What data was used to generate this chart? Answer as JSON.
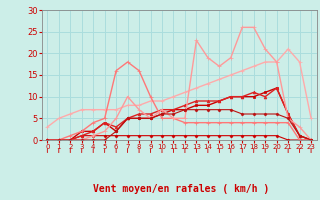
{
  "xlabel": "Vent moyen/en rafales ( km/h )",
  "bg_color": "#cceee8",
  "grid_color": "#aadddd",
  "xlim": [
    -0.5,
    23.5
  ],
  "ylim": [
    0,
    30
  ],
  "yticks": [
    0,
    5,
    10,
    15,
    20,
    25,
    30
  ],
  "xticks": [
    0,
    1,
    2,
    3,
    4,
    5,
    6,
    7,
    8,
    9,
    10,
    11,
    12,
    13,
    14,
    15,
    16,
    17,
    18,
    19,
    20,
    21,
    22,
    23
  ],
  "series": [
    {
      "x": [
        0,
        1,
        2,
        3,
        4,
        5,
        6,
        7,
        8,
        9,
        10,
        11,
        12,
        13,
        14,
        15,
        16,
        17,
        18,
        19,
        20,
        21,
        22,
        23
      ],
      "y": [
        0,
        0,
        0,
        1,
        1,
        1,
        1,
        1,
        1,
        1,
        1,
        1,
        1,
        1,
        1,
        1,
        1,
        1,
        1,
        1,
        1,
        0,
        0,
        0
      ],
      "color": "#cc0000",
      "lw": 0.8,
      "marker": "D",
      "ms": 1.5
    },
    {
      "x": [
        0,
        1,
        2,
        3,
        4,
        5,
        6,
        7,
        8,
        9,
        10,
        11,
        12,
        13,
        14,
        15,
        16,
        17,
        18,
        19,
        20,
        21,
        22,
        23
      ],
      "y": [
        0,
        0,
        0,
        2,
        2,
        4,
        2,
        5,
        5,
        5,
        6,
        7,
        7,
        8,
        8,
        9,
        10,
        10,
        10,
        11,
        12,
        6,
        1,
        0
      ],
      "color": "#cc0000",
      "lw": 1.0,
      "marker": "s",
      "ms": 2.0
    },
    {
      "x": [
        0,
        1,
        2,
        3,
        4,
        5,
        6,
        7,
        8,
        9,
        10,
        11,
        12,
        13,
        14,
        15,
        16,
        17,
        18,
        19,
        20,
        21,
        22,
        23
      ],
      "y": [
        0,
        0,
        0,
        1,
        2,
        4,
        3,
        5,
        6,
        6,
        7,
        7,
        8,
        9,
        9,
        9,
        10,
        10,
        11,
        10,
        12,
        6,
        1,
        0
      ],
      "color": "#dd2222",
      "lw": 1.0,
      "marker": "^",
      "ms": 2.0
    },
    {
      "x": [
        0,
        1,
        2,
        3,
        4,
        5,
        6,
        7,
        8,
        9,
        10,
        11,
        12,
        13,
        14,
        15,
        16,
        17,
        18,
        19,
        20,
        21,
        22,
        23
      ],
      "y": [
        3,
        5,
        6,
        7,
        7,
        7,
        7,
        8,
        8,
        9,
        9,
        10,
        11,
        12,
        13,
        14,
        15,
        16,
        17,
        18,
        18,
        21,
        18,
        5
      ],
      "color": "#ffaaaa",
      "lw": 1.0,
      "marker": "+",
      "ms": 3.5
    },
    {
      "x": [
        0,
        1,
        2,
        3,
        4,
        5,
        6,
        7,
        8,
        9,
        10,
        11,
        12,
        13,
        14,
        15,
        16,
        17,
        18,
        19,
        20,
        21,
        22,
        23
      ],
      "y": [
        0,
        0,
        1,
        2,
        4,
        5,
        16,
        18,
        16,
        10,
        5,
        5,
        4,
        4,
        4,
        4,
        4,
        4,
        4,
        4,
        4,
        4,
        0,
        0
      ],
      "color": "#ff7777",
      "lw": 1.0,
      "marker": "+",
      "ms": 3.0
    },
    {
      "x": [
        0,
        1,
        2,
        3,
        4,
        5,
        6,
        7,
        8,
        9,
        10,
        11,
        12,
        13,
        14,
        15,
        16,
        17,
        18,
        19,
        20,
        21,
        22,
        23
      ],
      "y": [
        0,
        0,
        0,
        0,
        1,
        2,
        5,
        10,
        7,
        5,
        7,
        5,
        5,
        23,
        19,
        17,
        19,
        26,
        26,
        21,
        18,
        5,
        3,
        0
      ],
      "color": "#ff9999",
      "lw": 1.0,
      "marker": "+",
      "ms": 3.0
    },
    {
      "x": [
        0,
        1,
        2,
        3,
        4,
        5,
        6,
        7,
        8,
        9,
        10,
        11,
        12,
        13,
        14,
        15,
        16,
        17,
        18,
        19,
        20,
        21,
        22,
        23
      ],
      "y": [
        0,
        0,
        0,
        0,
        0,
        0,
        2,
        5,
        5,
        5,
        6,
        6,
        7,
        7,
        7,
        7,
        7,
        6,
        6,
        6,
        6,
        5,
        1,
        0
      ],
      "color": "#bb1111",
      "lw": 0.8,
      "marker": "D",
      "ms": 1.5
    }
  ],
  "arrow_color": "#cc0000",
  "xlabel_color": "#cc0000",
  "xlabel_fontsize": 7,
  "tick_color": "#cc0000",
  "ytick_fontsize": 6,
  "xtick_fontsize": 5
}
